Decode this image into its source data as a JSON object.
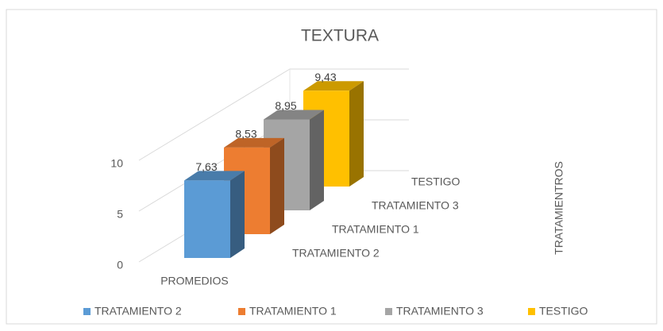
{
  "chart_data": {
    "type": "bar3d",
    "title": "TEXTURA",
    "categories": [
      "PROMEDIOS"
    ],
    "series": [
      {
        "name": "TRATAMIENTO 2",
        "color": "#5b9bd5",
        "values": [
          7.63
        ],
        "value_labels": [
          "7,63"
        ]
      },
      {
        "name": "TRATAMIENTO 1",
        "color": "#ed7d31",
        "values": [
          8.53
        ],
        "value_labels": [
          "8,53"
        ]
      },
      {
        "name": "TRATAMIENTO 3",
        "color": "#a5a5a5",
        "values": [
          8.95
        ],
        "value_labels": [
          "8,95"
        ]
      },
      {
        "name": "TESTIGO",
        "color": "#ffc000",
        "values": [
          9.43
        ],
        "value_labels": [
          "9,43"
        ]
      }
    ],
    "depth_axis_title": "TRATAMIENTROS",
    "ylim": [
      0,
      10
    ],
    "yticks": [
      0,
      5,
      10
    ],
    "grid": true,
    "legend": "bottom"
  }
}
